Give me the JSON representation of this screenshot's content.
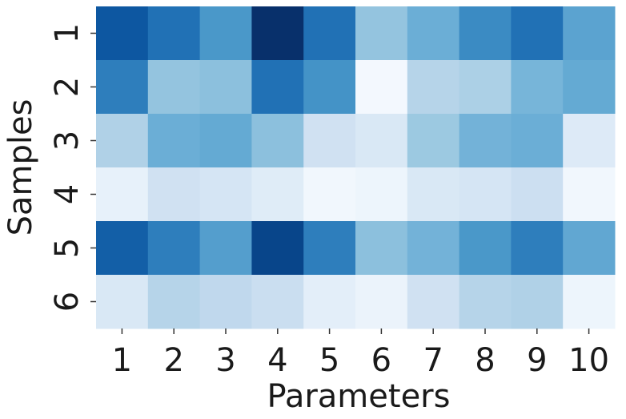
{
  "chart_data": {
    "type": "heatmap",
    "x_label": "Parameters",
    "y_label": "Samples",
    "x_categories": [
      "1",
      "2",
      "3",
      "4",
      "5",
      "6",
      "7",
      "8",
      "9",
      "10"
    ],
    "y_categories": [
      "1",
      "2",
      "3",
      "4",
      "5",
      "6"
    ],
    "colormap": "Blues",
    "zlim": [
      0,
      1
    ],
    "values": [
      [
        0.85,
        0.75,
        0.6,
        1.0,
        0.75,
        0.4,
        0.5,
        0.65,
        0.75,
        0.55
      ],
      [
        0.7,
        0.4,
        0.42,
        0.75,
        0.62,
        0.02,
        0.3,
        0.33,
        0.47,
        0.52
      ],
      [
        0.32,
        0.5,
        0.52,
        0.42,
        0.2,
        0.15,
        0.38,
        0.48,
        0.5,
        0.13
      ],
      [
        0.08,
        0.2,
        0.17,
        0.12,
        0.03,
        0.05,
        0.15,
        0.17,
        0.22,
        0.03
      ],
      [
        0.82,
        0.7,
        0.57,
        0.92,
        0.7,
        0.42,
        0.48,
        0.6,
        0.7,
        0.53
      ],
      [
        0.15,
        0.3,
        0.27,
        0.23,
        0.1,
        0.06,
        0.2,
        0.3,
        0.32,
        0.05
      ]
    ]
  }
}
